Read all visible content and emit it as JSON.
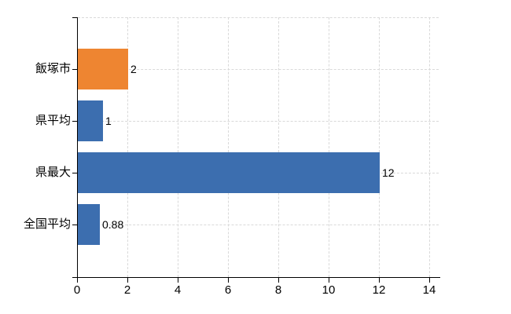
{
  "chart_data": {
    "type": "bar",
    "orientation": "horizontal",
    "title": "",
    "xlabel": "",
    "ylabel": "",
    "categories": [
      "飯塚市",
      "県平均",
      "県最大",
      "全国平均"
    ],
    "values": [
      2,
      1,
      12,
      0.88
    ],
    "value_labels": [
      "2",
      "1",
      "12",
      "0.88"
    ],
    "bar_colors": [
      "#ee8531",
      "#3c6eaf",
      "#3c6eaf",
      "#3c6eaf"
    ],
    "x_ticks": [
      0,
      2,
      4,
      6,
      8,
      10,
      12,
      14
    ],
    "x_tick_labels": [
      "0",
      "2",
      "4",
      "6",
      "8",
      "10",
      "12",
      "14"
    ],
    "xlim": [
      0,
      14.4
    ],
    "grid": true,
    "gridline_color": "#d9d9d9",
    "gridline_style": "dashed",
    "axis_color": "#000000",
    "text_color": "#000000",
    "background_color": "#ffffff",
    "legend": "none"
  }
}
